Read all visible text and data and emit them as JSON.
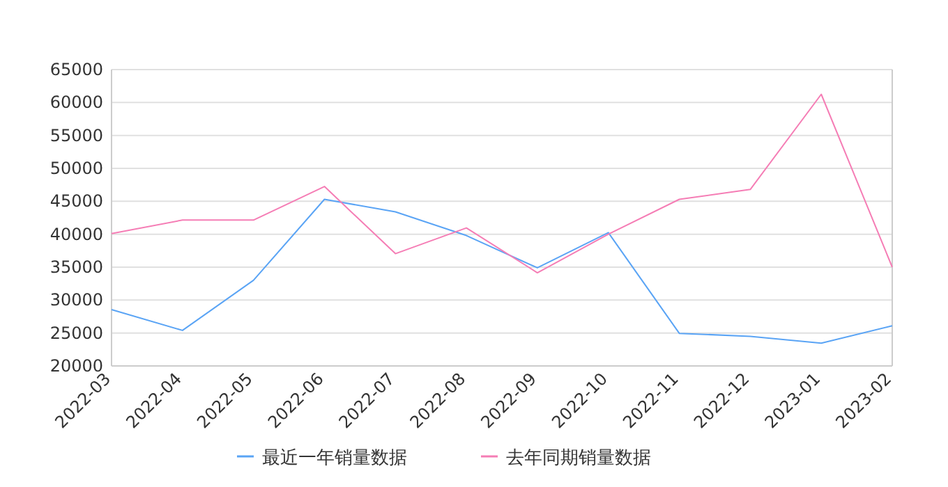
{
  "chart_data": {
    "type": "line",
    "categories": [
      "2022-03",
      "2022-04",
      "2022-05",
      "2022-06",
      "2022-07",
      "2022-08",
      "2022-09",
      "2022-10",
      "2022-11",
      "2022-12",
      "2023-01",
      "2023-02"
    ],
    "series": [
      {
        "name": "最近一年销量数据",
        "color": "#5aa4f5",
        "values": [
          28560,
          25400,
          33000,
          45300,
          43400,
          39800,
          34900,
          40250,
          24950,
          24500,
          23450,
          26100
        ]
      },
      {
        "name": "去年同期销量数据",
        "color": "#f57db5",
        "values": [
          40100,
          42150,
          42150,
          47250,
          37050,
          40950,
          34150,
          40000,
          45300,
          46800,
          61250,
          35000
        ]
      }
    ],
    "ylim": [
      20000,
      65000
    ],
    "yticks": [
      20000,
      25000,
      30000,
      35000,
      40000,
      45000,
      50000,
      55000,
      60000,
      65000
    ],
    "grid": "y",
    "legend": "bottom",
    "marker": "none",
    "line_style": "solid"
  }
}
